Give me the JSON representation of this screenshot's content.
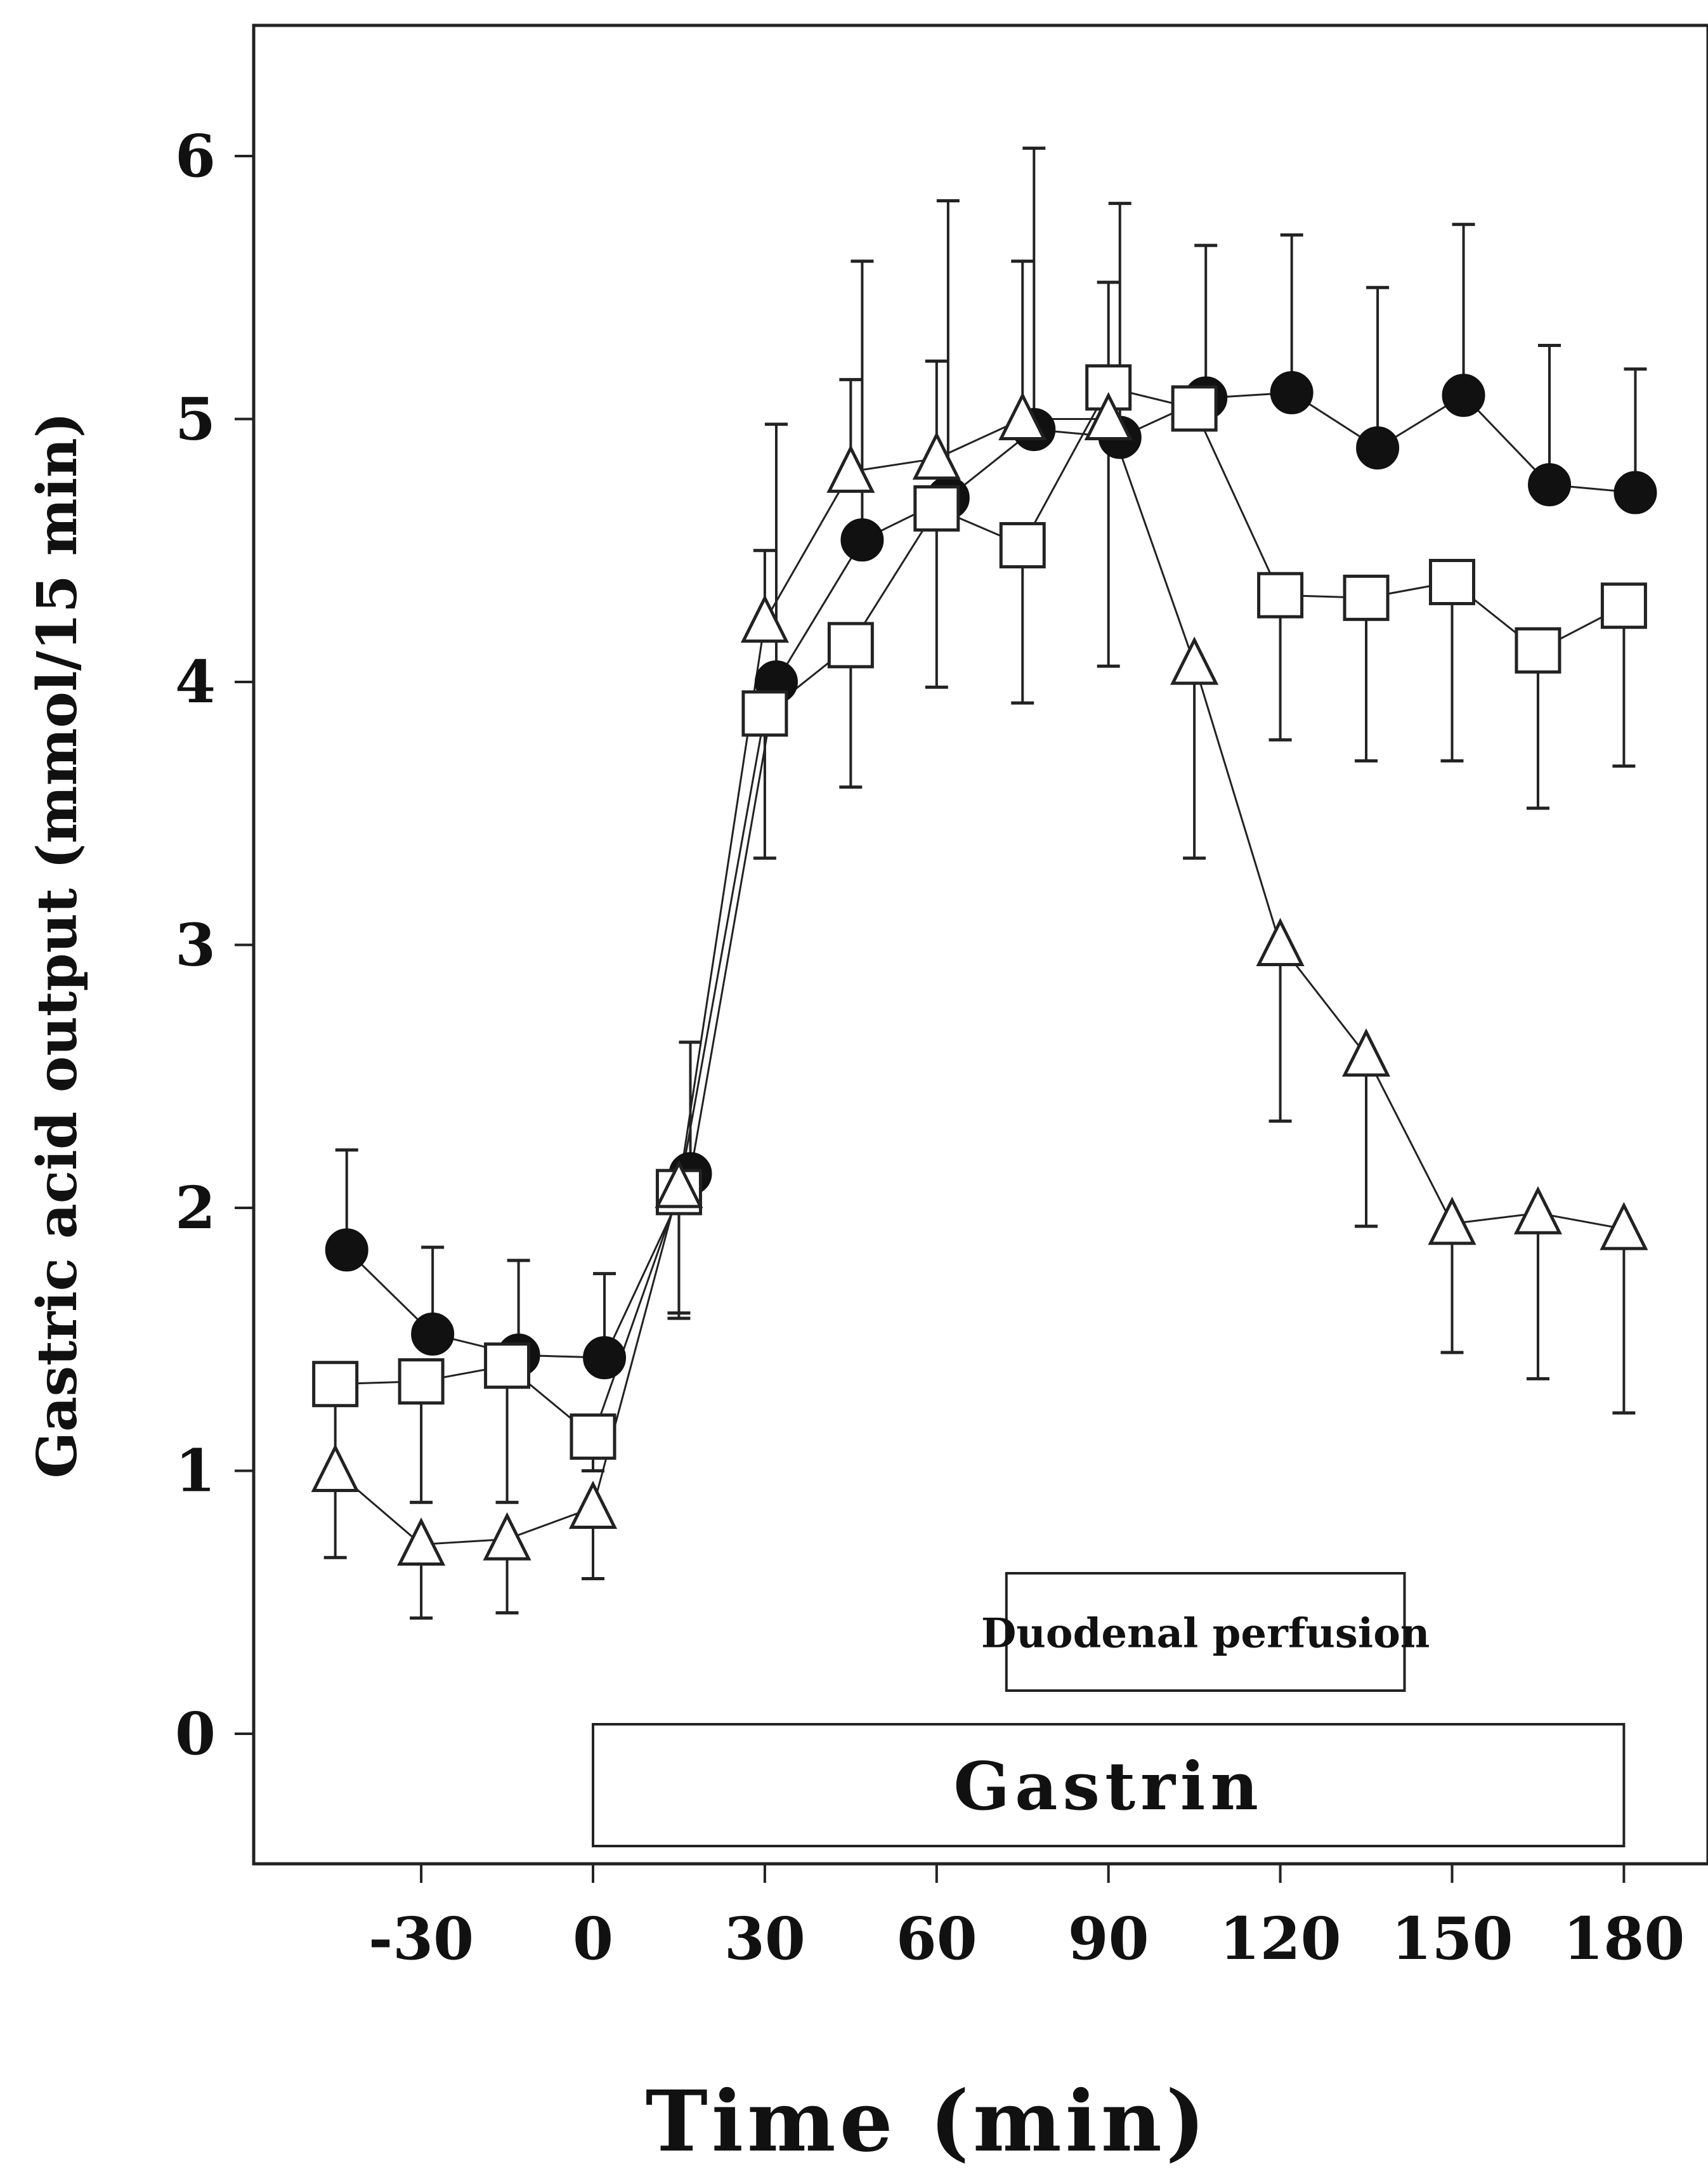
{
  "chart_data": {
    "type": "line",
    "title": "",
    "xlabel": "Time (min)",
    "ylabel": "Gastric acid output (mmol/15 min)",
    "xlim": [
      -60,
      192
    ],
    "ylim": [
      -0.5,
      6.5
    ],
    "x_ticks": [
      "-30",
      "0",
      "30",
      "60",
      "90",
      "120",
      "150",
      "180"
    ],
    "y_ticks": [
      "0",
      "1",
      "2",
      "3",
      "4",
      "5",
      "6"
    ],
    "grid": false,
    "legend": "none",
    "series": [
      {
        "marker": "filled-circle",
        "x": [
          -43,
          -28,
          -13,
          2,
          17,
          32,
          47,
          62,
          77,
          92,
          107,
          122,
          137,
          152,
          167,
          182
        ],
        "values": [
          1.84,
          1.52,
          1.44,
          1.43,
          2.13,
          4.0,
          4.54,
          4.7,
          4.96,
          4.93,
          5.08,
          5.1,
          4.89,
          5.09,
          4.75,
          4.72
        ],
        "error_upper": [
          2.22,
          1.85,
          1.8,
          1.75,
          2.63,
          4.98,
          5.6,
          5.83,
          6.03,
          5.82,
          5.66,
          5.7,
          5.5,
          5.74,
          5.28,
          5.19
        ]
      },
      {
        "marker": "open-square",
        "x": [
          -45,
          -30,
          -15,
          0,
          15,
          30,
          45,
          60,
          75,
          90,
          105,
          120,
          135,
          150,
          165,
          180
        ],
        "values": [
          1.33,
          1.34,
          1.4,
          1.13,
          2.06,
          3.88,
          4.14,
          4.66,
          4.52,
          5.12,
          5.04,
          4.33,
          4.32,
          4.38,
          4.12,
          4.29
        ],
        "error_lower": [
          1.0,
          0.88,
          0.88,
          1.0,
          1.6,
          3.33,
          3.6,
          3.98,
          3.92,
          4.06,
          5.0,
          3.78,
          3.7,
          3.7,
          3.52,
          3.68
        ]
      },
      {
        "marker": "open-triangle",
        "x": [
          -45,
          -30,
          -15,
          0,
          15,
          30,
          45,
          60,
          75,
          90,
          105,
          120,
          135,
          150,
          165,
          180
        ],
        "values": [
          1.0,
          0.72,
          0.74,
          0.86,
          2.08,
          4.23,
          4.8,
          4.85,
          5.0,
          5.0,
          4.07,
          3.0,
          2.58,
          1.94,
          1.98,
          1.92
        ],
        "error_lower": [
          0.67,
          0.44,
          0.46,
          0.59,
          1.58,
          4.5,
          5.15,
          5.22,
          5.6,
          5.52,
          3.33,
          2.33,
          1.93,
          1.45,
          1.35,
          1.22
        ]
      }
    ],
    "annotations": [
      {
        "text": "Duodenal perfusion",
        "x_range": [
          60,
          150
        ]
      },
      {
        "text": "Gastrin",
        "x_range": [
          0,
          180
        ]
      }
    ]
  }
}
